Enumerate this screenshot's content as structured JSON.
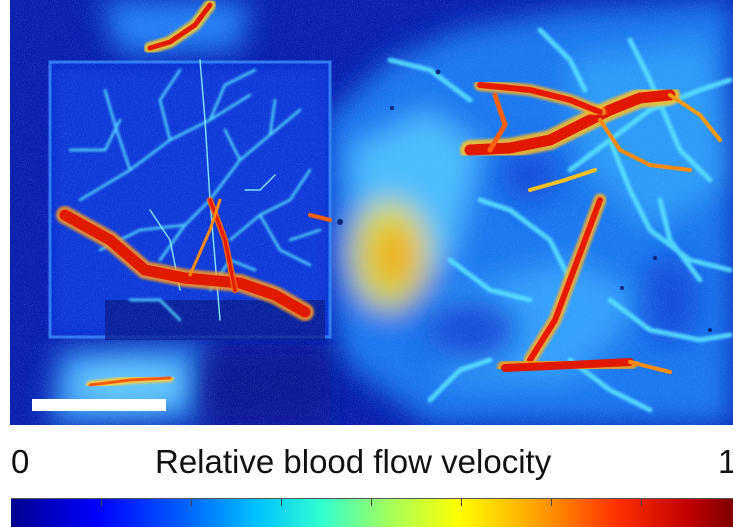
{
  "figure": {
    "colorbar_min": "0",
    "colorbar_max": "1",
    "colorbar_title": "Relative blood flow velocity",
    "colormap": "jet",
    "colors": {
      "low": "#00008f",
      "background_tissue": "#0a3fd8",
      "mid": "#2fd0ff",
      "high": "#ffe000",
      "vessel": "#e82000",
      "scale_bar": "#ffffff"
    }
  }
}
